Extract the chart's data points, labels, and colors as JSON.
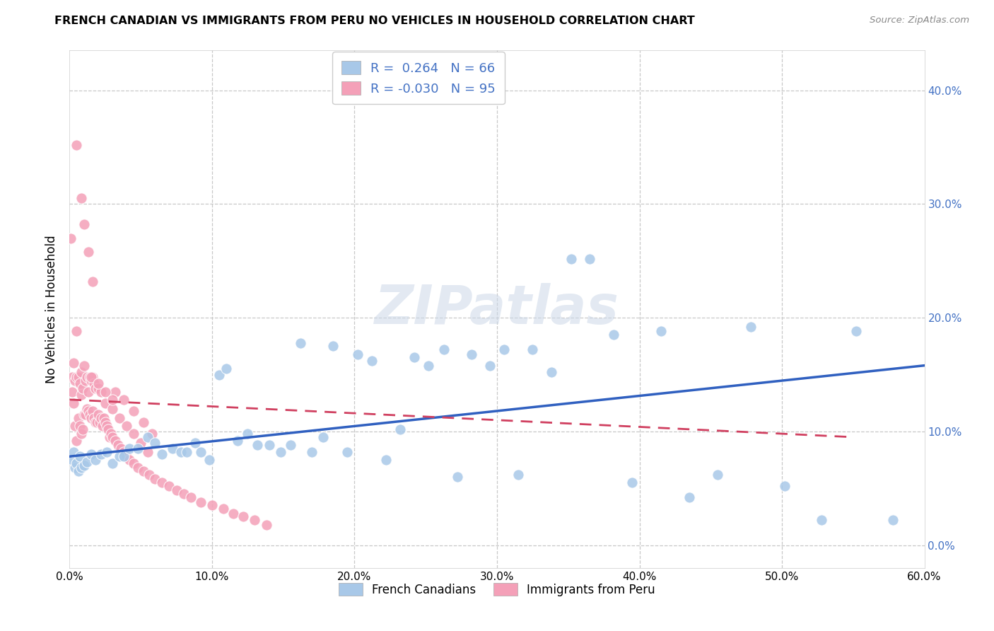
{
  "title": "FRENCH CANADIAN VS IMMIGRANTS FROM PERU NO VEHICLES IN HOUSEHOLD CORRELATION CHART",
  "source": "Source: ZipAtlas.com",
  "ylabel": "No Vehicles in Household",
  "watermark": "ZIPatlas",
  "blue_R": 0.264,
  "blue_N": 66,
  "pink_R": -0.03,
  "pink_N": 95,
  "blue_color": "#a8c8e8",
  "pink_color": "#f4a0b8",
  "blue_line_color": "#3060c0",
  "pink_line_color": "#d04060",
  "legend_blue_label": "French Canadians",
  "legend_pink_label": "Immigrants from Peru",
  "xlim": [
    0.0,
    0.6
  ],
  "ylim": [
    -0.02,
    0.435
  ],
  "yticks": [
    0.0,
    0.1,
    0.2,
    0.3,
    0.4
  ],
  "xticks": [
    0.0,
    0.1,
    0.2,
    0.3,
    0.4,
    0.5,
    0.6
  ],
  "blue_line_x": [
    0.0,
    0.6
  ],
  "blue_line_y": [
    0.078,
    0.158
  ],
  "pink_line_x": [
    0.0,
    0.55
  ],
  "pink_line_y": [
    0.128,
    0.095
  ],
  "blue_x": [
    0.002,
    0.003,
    0.004,
    0.005,
    0.006,
    0.007,
    0.008,
    0.01,
    0.012,
    0.015,
    0.018,
    0.022,
    0.026,
    0.03,
    0.035,
    0.038,
    0.042,
    0.048,
    0.055,
    0.06,
    0.065,
    0.072,
    0.078,
    0.082,
    0.088,
    0.092,
    0.098,
    0.105,
    0.11,
    0.118,
    0.125,
    0.132,
    0.14,
    0.148,
    0.155,
    0.162,
    0.17,
    0.178,
    0.185,
    0.195,
    0.202,
    0.212,
    0.222,
    0.232,
    0.242,
    0.252,
    0.263,
    0.272,
    0.282,
    0.295,
    0.305,
    0.315,
    0.325,
    0.338,
    0.352,
    0.365,
    0.382,
    0.395,
    0.415,
    0.435,
    0.455,
    0.478,
    0.502,
    0.528,
    0.552,
    0.578
  ],
  "blue_y": [
    0.075,
    0.082,
    0.068,
    0.072,
    0.065,
    0.078,
    0.068,
    0.07,
    0.073,
    0.08,
    0.075,
    0.08,
    0.082,
    0.072,
    0.078,
    0.078,
    0.085,
    0.085,
    0.095,
    0.09,
    0.08,
    0.085,
    0.082,
    0.082,
    0.09,
    0.082,
    0.075,
    0.15,
    0.155,
    0.092,
    0.098,
    0.088,
    0.088,
    0.082,
    0.088,
    0.178,
    0.082,
    0.095,
    0.175,
    0.082,
    0.168,
    0.162,
    0.075,
    0.102,
    0.165,
    0.158,
    0.172,
    0.06,
    0.168,
    0.158,
    0.172,
    0.062,
    0.172,
    0.152,
    0.252,
    0.252,
    0.185,
    0.055,
    0.188,
    0.042,
    0.062,
    0.192,
    0.052,
    0.022,
    0.188,
    0.022
  ],
  "pink_x": [
    0.001,
    0.002,
    0.002,
    0.003,
    0.003,
    0.004,
    0.004,
    0.005,
    0.005,
    0.005,
    0.006,
    0.006,
    0.007,
    0.007,
    0.008,
    0.008,
    0.008,
    0.009,
    0.009,
    0.01,
    0.01,
    0.011,
    0.011,
    0.012,
    0.012,
    0.013,
    0.013,
    0.014,
    0.014,
    0.015,
    0.015,
    0.016,
    0.016,
    0.017,
    0.017,
    0.018,
    0.018,
    0.019,
    0.02,
    0.02,
    0.021,
    0.022,
    0.022,
    0.023,
    0.024,
    0.025,
    0.026,
    0.027,
    0.028,
    0.029,
    0.03,
    0.032,
    0.034,
    0.036,
    0.038,
    0.04,
    0.042,
    0.045,
    0.048,
    0.052,
    0.056,
    0.06,
    0.065,
    0.07,
    0.075,
    0.08,
    0.085,
    0.092,
    0.1,
    0.108,
    0.115,
    0.122,
    0.13,
    0.138,
    0.025,
    0.03,
    0.035,
    0.04,
    0.045,
    0.05,
    0.055,
    0.032,
    0.038,
    0.045,
    0.052,
    0.058,
    0.015,
    0.02,
    0.025,
    0.03,
    0.005,
    0.008,
    0.01,
    0.013,
    0.016
  ],
  "pink_y": [
    0.27,
    0.135,
    0.148,
    0.125,
    0.16,
    0.105,
    0.145,
    0.092,
    0.148,
    0.188,
    0.112,
    0.148,
    0.105,
    0.142,
    0.098,
    0.132,
    0.152,
    0.102,
    0.138,
    0.115,
    0.158,
    0.115,
    0.145,
    0.12,
    0.148,
    0.118,
    0.135,
    0.115,
    0.148,
    0.112,
    0.145,
    0.118,
    0.148,
    0.112,
    0.142,
    0.108,
    0.138,
    0.108,
    0.115,
    0.138,
    0.108,
    0.112,
    0.135,
    0.105,
    0.112,
    0.108,
    0.105,
    0.102,
    0.095,
    0.098,
    0.095,
    0.092,
    0.088,
    0.085,
    0.082,
    0.078,
    0.075,
    0.072,
    0.068,
    0.065,
    0.062,
    0.058,
    0.055,
    0.052,
    0.048,
    0.045,
    0.042,
    0.038,
    0.035,
    0.032,
    0.028,
    0.025,
    0.022,
    0.018,
    0.125,
    0.12,
    0.112,
    0.105,
    0.098,
    0.09,
    0.082,
    0.135,
    0.128,
    0.118,
    0.108,
    0.098,
    0.148,
    0.142,
    0.135,
    0.128,
    0.352,
    0.305,
    0.282,
    0.258,
    0.232
  ]
}
